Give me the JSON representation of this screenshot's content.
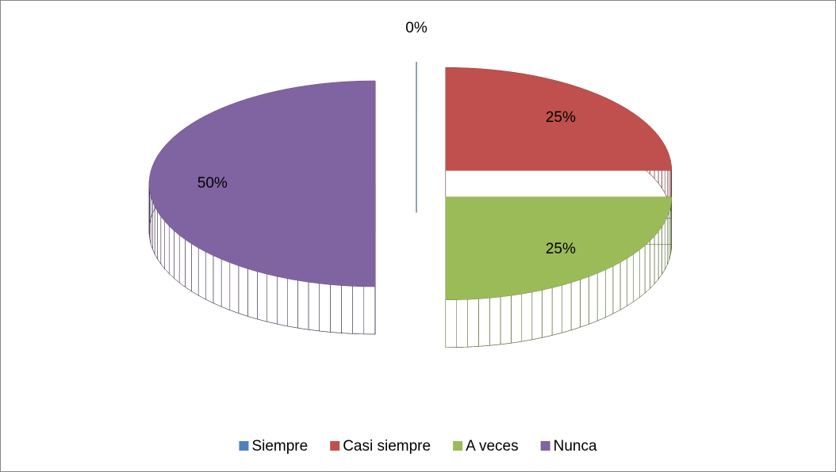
{
  "chart_data": {
    "type": "pie",
    "categories": [
      "Siempre",
      "Casi siempre",
      "A veces",
      "Nunca"
    ],
    "values": [
      0,
      25,
      25,
      50
    ],
    "value_labels": [
      "0%",
      "25%",
      "25%",
      "50%"
    ],
    "colors": [
      "#4f81bd",
      "#c0504d",
      "#9bbb59",
      "#8064a2"
    ],
    "legend": "bottom"
  }
}
